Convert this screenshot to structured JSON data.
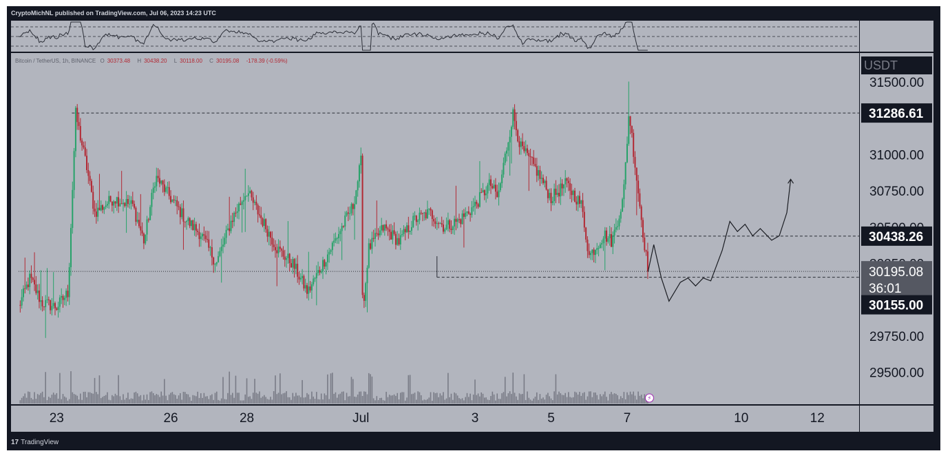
{
  "header": {
    "publisher_text": "CryptoMichNL published on TradingView.com, Jul 06, 2023 14:23 UTC"
  },
  "legend": {
    "symbol": "Bitcoin / TetherUS, 1h, BINANCE",
    "open_label": "O",
    "open": "30373.48",
    "high_label": "H",
    "high": "30438.20",
    "low_label": "L",
    "low": "30118.00",
    "close_label": "C",
    "close": "30195.08",
    "change": "-178.39 (-0.59%)"
  },
  "currency_label": "USDT",
  "footer": {
    "logo_glyph": "17",
    "brand": "TradingView"
  },
  "colors": {
    "up": "#26a269",
    "down": "#b22833",
    "background": "#b2b5be",
    "frame": "#131722"
  },
  "chart_data": {
    "type": "candlestick",
    "symbol": "Bitcoin / TetherUS, 1h, BINANCE",
    "ylim": [
      29280,
      31700
    ],
    "price_ticks": [
      {
        "value": 31500,
        "label": "31500.00"
      },
      {
        "value": 31000,
        "label": "31000.00"
      },
      {
        "value": 30750,
        "label": "30750.00"
      },
      {
        "value": 30500,
        "label": "30500.00"
      },
      {
        "value": 30250,
        "label": "30250.00"
      },
      {
        "value": 29750,
        "label": "29750.00"
      },
      {
        "value": 29500,
        "label": "29500.00"
      }
    ],
    "time_ticks": [
      {
        "day": 23,
        "label": "23"
      },
      {
        "day": 26,
        "label": "26"
      },
      {
        "day": 28,
        "label": "28"
      },
      {
        "day": 31,
        "label": "Jul"
      },
      {
        "day": 34,
        "label": "3"
      },
      {
        "day": 36,
        "label": "5"
      },
      {
        "day": 38,
        "label": "7"
      },
      {
        "day": 41,
        "label": "10"
      },
      {
        "day": 43,
        "label": "12"
      }
    ],
    "tags": [
      {
        "value": 31286.61,
        "label": "31286.61",
        "style": "dark"
      },
      {
        "value": 30438.26,
        "label": "30438.26",
        "style": "dark"
      },
      {
        "value": 30195.08,
        "label": "30195.08",
        "sublabel": "36:01",
        "style": "grey"
      },
      {
        "value": 30155.0,
        "label": "30155.00",
        "style": "dark"
      }
    ],
    "levels": [
      {
        "value": 31286.61,
        "from_day": 23.4,
        "style": "dashed"
      },
      {
        "value": 30438.26,
        "from_day": 37.6,
        "style": "dashed"
      },
      {
        "value": 30155.0,
        "from_day": 33.0,
        "style": "dashed"
      },
      {
        "value": 30195.08,
        "from_day": 22.0,
        "style": "dotted"
      }
    ],
    "price_path": [
      [
        22.0,
        29950
      ],
      [
        22.3,
        30150
      ],
      [
        22.6,
        29980
      ],
      [
        23.0,
        29950
      ],
      [
        23.3,
        30050
      ],
      [
        23.5,
        31280
      ],
      [
        23.8,
        30900
      ],
      [
        24.0,
        30600
      ],
      [
        24.5,
        30700
      ],
      [
        25.0,
        30650
      ],
      [
        25.3,
        30400
      ],
      [
        25.6,
        30850
      ],
      [
        26.0,
        30700
      ],
      [
        26.4,
        30550
      ],
      [
        26.8,
        30450
      ],
      [
        27.2,
        30250
      ],
      [
        27.6,
        30550
      ],
      [
        28.0,
        30750
      ],
      [
        28.4,
        30550
      ],
      [
        28.8,
        30350
      ],
      [
        29.2,
        30250
      ],
      [
        29.6,
        30050
      ],
      [
        30.0,
        30250
      ],
      [
        30.4,
        30450
      ],
      [
        30.8,
        30650
      ],
      [
        31.0,
        30950
      ],
      [
        31.05,
        29900
      ],
      [
        31.2,
        30350
      ],
      [
        31.6,
        30500
      ],
      [
        32.0,
        30400
      ],
      [
        32.4,
        30550
      ],
      [
        32.8,
        30600
      ],
      [
        33.2,
        30500
      ],
      [
        33.6,
        30550
      ],
      [
        34.0,
        30650
      ],
      [
        34.4,
        30800
      ],
      [
        34.6,
        30700
      ],
      [
        34.8,
        31000
      ],
      [
        35.0,
        31280
      ],
      [
        35.2,
        31050
      ],
      [
        35.6,
        30900
      ],
      [
        36.0,
        30700
      ],
      [
        36.4,
        30800
      ],
      [
        36.8,
        30650
      ],
      [
        37.0,
        30300
      ],
      [
        37.4,
        30450
      ],
      [
        37.6,
        30400
      ],
      [
        37.9,
        30700
      ],
      [
        38.05,
        31300
      ],
      [
        38.2,
        30950
      ],
      [
        38.4,
        30500
      ],
      [
        38.55,
        30195
      ]
    ],
    "projection": [
      [
        38.55,
        30195
      ],
      [
        38.7,
        30380
      ],
      [
        38.9,
        30150
      ],
      [
        39.1,
        29990
      ],
      [
        39.4,
        30120
      ],
      [
        39.6,
        30150
      ],
      [
        39.8,
        30095
      ],
      [
        40.0,
        30150
      ],
      [
        40.2,
        30130
      ],
      [
        40.5,
        30340
      ],
      [
        40.7,
        30540
      ],
      [
        40.9,
        30470
      ],
      [
        41.1,
        30520
      ],
      [
        41.3,
        30440
      ],
      [
        41.5,
        30490
      ],
      [
        41.8,
        30410
      ],
      [
        42.0,
        30440
      ],
      [
        42.2,
        30600
      ],
      [
        42.3,
        30830
      ]
    ]
  }
}
